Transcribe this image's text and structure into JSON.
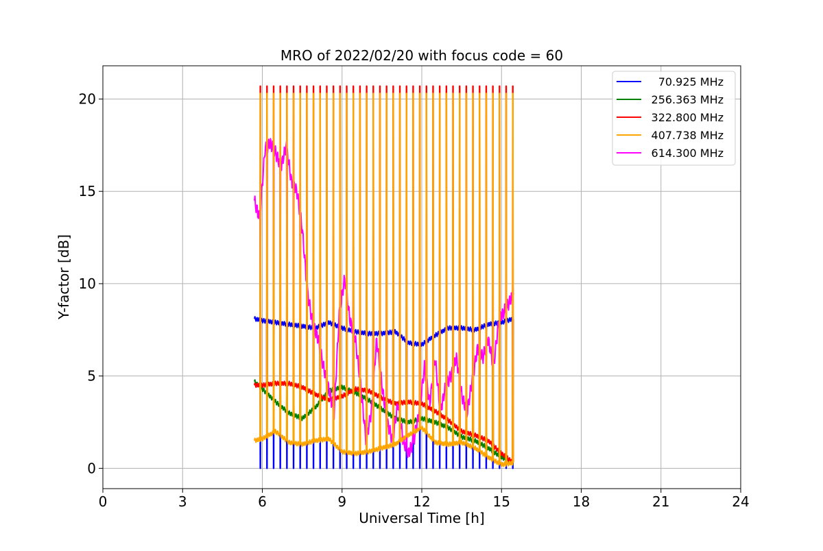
{
  "chart_data": {
    "type": "line",
    "title": "MRO of 2022/02/20 with focus code = 60",
    "xlabel": "Universal Time [h]",
    "ylabel": "Y-factor [dB]",
    "xlim": [
      0,
      24
    ],
    "ylim": [
      -1.1,
      21.8
    ],
    "xticks": [
      0,
      3,
      6,
      9,
      12,
      15,
      18,
      21,
      24
    ],
    "yticks": [
      0,
      5,
      10,
      15,
      20
    ],
    "grid": true,
    "legend_position": "top-right",
    "cycle": {
      "start_h": 5.7,
      "end_h": 15.45,
      "period_h": 0.25,
      "spike_peaks": {
        "70.925 MHz": 0,
        "256.363 MHz": 5,
        "322.800 MHz": 20.7,
        "407.738 MHz": 20.3,
        "614.300 MHz": 10
      }
    },
    "series": [
      {
        "name": "70.925 MHz",
        "color": "#0000ff",
        "x": [
          5.7,
          6.0,
          6.5,
          7.0,
          7.5,
          8.0,
          8.5,
          9.0,
          9.5,
          10.0,
          10.5,
          11.0,
          11.5,
          12.0,
          12.5,
          13.0,
          13.5,
          14.0,
          14.5,
          15.0,
          15.45
        ],
        "y": [
          8.1,
          8.0,
          7.9,
          7.8,
          7.7,
          7.6,
          7.9,
          7.6,
          7.4,
          7.3,
          7.3,
          7.4,
          6.8,
          6.7,
          7.2,
          7.6,
          7.6,
          7.5,
          7.8,
          7.9,
          8.1
        ]
      },
      {
        "name": "256.363 MHz",
        "color": "#008000",
        "x": [
          5.7,
          6.0,
          6.5,
          7.0,
          7.5,
          8.0,
          8.5,
          9.0,
          9.5,
          10.0,
          10.5,
          11.0,
          11.5,
          12.0,
          12.5,
          13.0,
          13.5,
          14.0,
          14.5,
          15.0,
          15.45
        ],
        "y": [
          4.7,
          4.3,
          3.6,
          3.0,
          2.7,
          3.3,
          4.2,
          4.4,
          4.1,
          3.7,
          3.2,
          2.7,
          2.5,
          2.7,
          2.5,
          2.2,
          1.7,
          1.5,
          1.1,
          0.6,
          0.3
        ]
      },
      {
        "name": "322.800 MHz",
        "color": "#ff0000",
        "x": [
          5.7,
          6.0,
          6.5,
          7.0,
          7.5,
          8.0,
          8.5,
          9.0,
          9.5,
          10.0,
          10.5,
          11.0,
          11.5,
          12.0,
          12.5,
          13.0,
          13.5,
          14.0,
          14.5,
          15.0,
          15.45
        ],
        "y": [
          4.5,
          4.5,
          4.6,
          4.6,
          4.4,
          4.0,
          3.7,
          3.9,
          4.3,
          4.2,
          3.8,
          3.5,
          3.6,
          3.5,
          3.1,
          2.6,
          2.0,
          1.8,
          1.5,
          0.8,
          0.3
        ]
      },
      {
        "name": "407.738 MHz",
        "color": "#ffa500",
        "x": [
          5.7,
          6.0,
          6.5,
          7.0,
          7.5,
          8.0,
          8.5,
          9.0,
          9.5,
          10.0,
          10.5,
          11.0,
          11.5,
          12.0,
          12.5,
          13.0,
          13.5,
          14.0,
          14.5,
          15.0,
          15.45
        ],
        "y": [
          1.5,
          1.6,
          2.0,
          1.4,
          1.3,
          1.5,
          1.6,
          0.9,
          0.8,
          0.9,
          1.1,
          1.3,
          1.8,
          2.2,
          1.4,
          1.3,
          1.4,
          1.1,
          0.6,
          0.2,
          0.3
        ]
      },
      {
        "name": "614.300 MHz",
        "color": "#ff00ff",
        "x": [
          5.7,
          5.9,
          6.1,
          6.3,
          6.5,
          6.7,
          6.9,
          7.1,
          7.3,
          7.5,
          7.7,
          7.9,
          8.1,
          8.3,
          8.5,
          8.7,
          8.9,
          9.1,
          9.3,
          9.5,
          9.7,
          9.9,
          10.1,
          10.3,
          10.5,
          10.7,
          10.9,
          11.1,
          11.3,
          11.5,
          11.7,
          11.9,
          12.1,
          12.3,
          12.5,
          12.7,
          12.9,
          13.1,
          13.3,
          13.5,
          13.7,
          13.9,
          14.1,
          14.3,
          14.5,
          14.7,
          14.9,
          15.1,
          15.3,
          15.45
        ],
        "y": [
          14.5,
          13.5,
          17.3,
          17.6,
          17.1,
          16.3,
          17.5,
          15.5,
          15.0,
          13.0,
          9.5,
          7.8,
          7.0,
          5.5,
          4.3,
          3.0,
          8.5,
          10.3,
          8.0,
          7.0,
          4.5,
          1.5,
          3.0,
          7.0,
          4.5,
          2.5,
          1.5,
          3.5,
          1.5,
          0.8,
          1.5,
          3.0,
          5.5,
          3.5,
          6.0,
          3.0,
          4.5,
          5.0,
          6.0,
          4.0,
          3.0,
          4.8,
          6.5,
          6.0,
          7.0,
          5.5,
          8.0,
          8.5,
          9.0,
          9.5
        ]
      }
    ]
  }
}
